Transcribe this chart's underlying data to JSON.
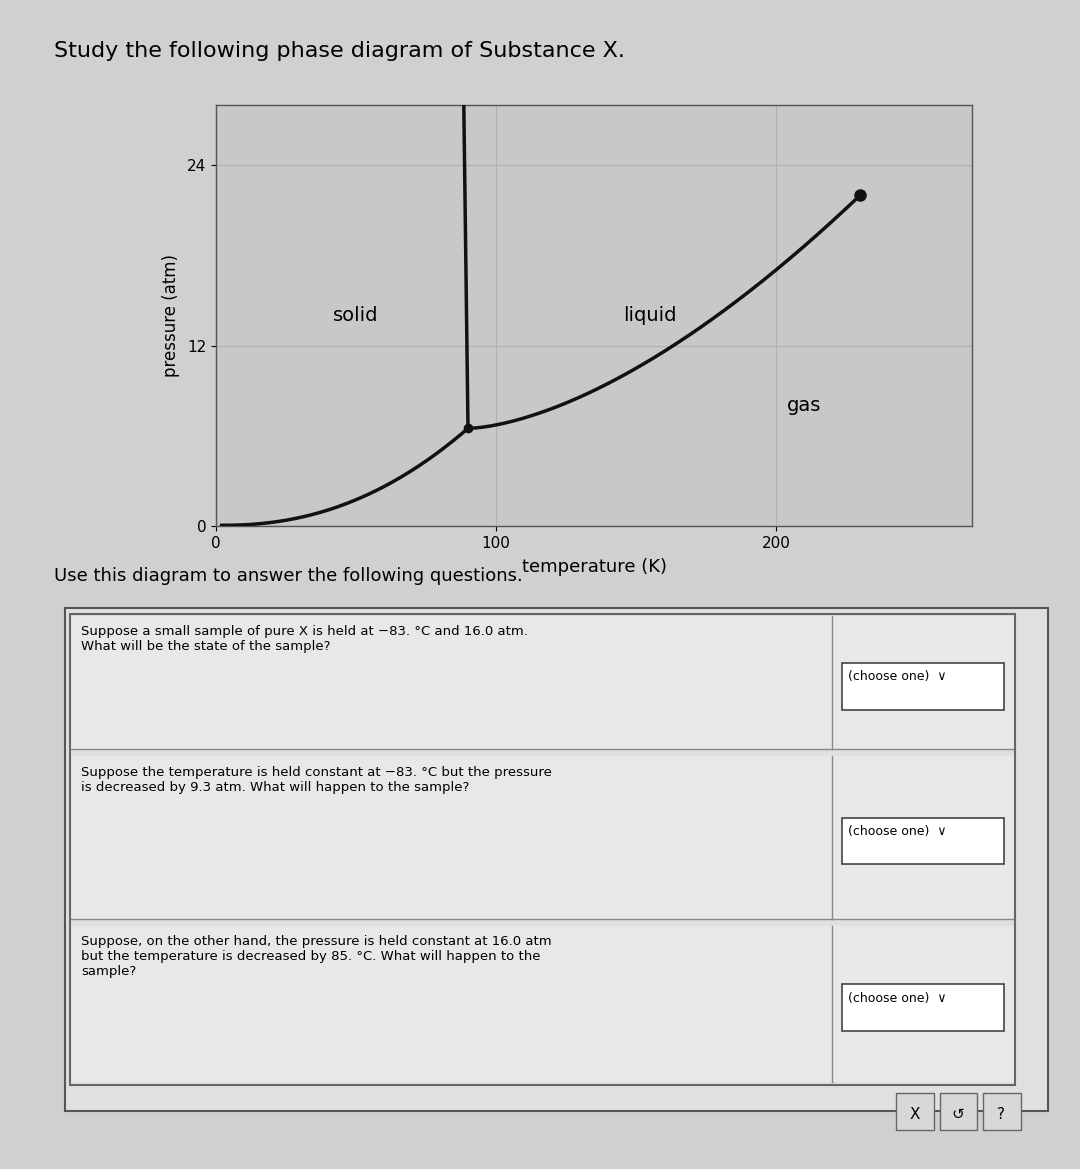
{
  "title": "Study the following phase diagram of Substance X.",
  "xlabel": "temperature (K)",
  "ylabel": "pressure (atm)",
  "xlim": [
    0,
    270
  ],
  "ylim": [
    0,
    28
  ],
  "xticks": [
    0,
    100,
    200
  ],
  "yticks": [
    0,
    12,
    24
  ],
  "grid_color": "#aaaaaa",
  "bg_color": "#d0d0d0",
  "plot_bg_color": "#c8c8c8",
  "line_color": "#111111",
  "triple_point": [
    90,
    6.5
  ],
  "critical_point": [
    230,
    22
  ],
  "solid_label": "solid",
  "liquid_label": "liquid",
  "gas_label": "gas",
  "use_text": "Use this diagram to answer the following questions.",
  "questions": [
    {
      "text": "Suppose a small sample of pure X is held at −83. °C and 16.0 atm.\nWhat will be the state of the sample?",
      "answer": "(choose one)"
    },
    {
      "text": "Suppose the temperature is held constant at −83. °C but the pressure\nis decreased by 9.3 atm. What will happen to the sample?",
      "answer": "(choose one)"
    },
    {
      "text": "Suppose, on the other hand, the pressure is held constant at 16.0 atm\nbut the temperature is decreased by 85. °C. What will happen to the\nsample?",
      "answer": "(choose one)"
    }
  ]
}
